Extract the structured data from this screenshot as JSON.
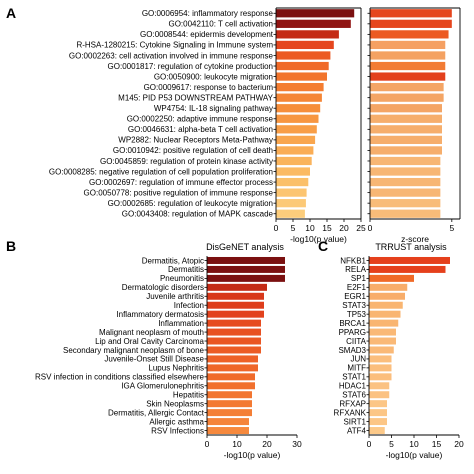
{
  "figure": {
    "background": "#ffffff",
    "axis_color": "#000000"
  },
  "chart_data": [
    {
      "panel": "A",
      "type": "bar",
      "orientation": "horizontal",
      "title": "",
      "xlabel": "-log10(p value)",
      "ylabel": "",
      "xlim": [
        0,
        25
      ],
      "xticks": [
        0,
        5,
        10,
        15,
        20,
        25
      ],
      "categories": [
        "GO:0006954: inflammatory response",
        "GO:0042110: T cell activation",
        "GO:0008544: epidermis development",
        "R-HSA-1280215: Cytokine Signaling in Immune system",
        "GO:0002263: cell activation involved in immune response",
        "GO:0001817: regulation of cytokine production",
        "GO:0050900: leukocyte migration",
        "GO:0009617: response to bacterium",
        "M145: PID P53 DOWNSTREAM PATHWAY",
        "WP4754: IL-18 signaling pathway",
        "GO:0002250: adaptive immune response",
        "GO:0046631: alpha-beta T cell activation",
        "WP2882: Nuclear Receptors Meta-Pathway",
        "GO:0010942: positive regulation of cell death",
        "GO:0045859: regulation of protein kinase activity",
        "GO:0008285: negative regulation of cell population proliferation",
        "GO:0002697: regulation of immune effector process",
        "GO:0050778: positive regulation of immune response",
        "GO:0002685: regulation of leukocyte migration",
        "GO:0043408: regulation of MAPK cascade"
      ],
      "values": [
        23,
        22,
        18.5,
        17,
        16,
        15.5,
        15,
        14,
        13.5,
        13,
        12.5,
        12,
        11.5,
        11,
        10.5,
        10,
        9.5,
        9,
        8.8,
        8.5
      ],
      "colors": [
        "#7b1010",
        "#901412",
        "#c42b16",
        "#e5461e",
        "#ec5a23",
        "#f06a28",
        "#f2742c",
        "#f47d31",
        "#f58636",
        "#f68e3b",
        "#f79641",
        "#f89e47",
        "#f9a64e",
        "#faad55",
        "#fab45c",
        "#fbba63",
        "#fbc06a",
        "#fcc571",
        "#fcc977",
        "#fccd7c"
      ]
    },
    {
      "panel": "A",
      "type": "bar",
      "orientation": "horizontal",
      "title": "",
      "xlabel": "z-score",
      "ylabel": "",
      "xlim": [
        0,
        5.5
      ],
      "xticks": [
        0,
        5
      ],
      "categories": [
        "GO:0006954: inflammatory response",
        "GO:0042110: T cell activation",
        "GO:0008544: epidermis development",
        "R-HSA-1280215: Cytokine Signaling in Immune system",
        "GO:0002263: cell activation involved in immune response",
        "GO:0001817: regulation of cytokine production",
        "GO:0050900: leukocyte migration",
        "GO:0009617: response to bacterium",
        "M145: PID P53 DOWNSTREAM PATHWAY",
        "WP4754: IL-18 signaling pathway",
        "GO:0002250: adaptive immune response",
        "GO:0046631: alpha-beta T cell activation",
        "WP2882: Nuclear Receptors Meta-Pathway",
        "GO:0010942: positive regulation of cell death",
        "GO:0045859: regulation of protein kinase activity",
        "GO:0008285: negative regulation of cell population proliferation",
        "GO:0002697: regulation of immune effector process",
        "GO:0050778: positive regulation of immune response",
        "GO:0002685: regulation of leukocyte migration",
        "GO:0043408: regulation of MAPK cascade"
      ],
      "values": [
        5,
        5,
        4.8,
        4.6,
        4.6,
        4.6,
        4.6,
        4.5,
        4.5,
        4.4,
        4.4,
        4.4,
        4.4,
        4.4,
        4.3,
        4.3,
        4.3,
        4.3,
        4.3,
        4.3
      ],
      "colors": [
        "#e5461e",
        "#e5461e",
        "#ec5a23",
        "#f5a062",
        "#f4a262",
        "#f27c35",
        "#e3401c",
        "#f4a565",
        "#f4a565",
        "#f4a565",
        "#f6ae6c",
        "#f6ae6c",
        "#f6ae6c",
        "#f6ae6c",
        "#f7b674",
        "#f7b674",
        "#f7b674",
        "#f7b674",
        "#f8bc79",
        "#f8bc79"
      ]
    },
    {
      "panel": "B",
      "type": "bar",
      "orientation": "horizontal",
      "title": "DisGeNET analysis",
      "xlabel": "-log10(p value)",
      "ylabel": "",
      "xlim": [
        0,
        30
      ],
      "xticks": [
        0,
        10,
        20,
        30
      ],
      "categories": [
        "Dermatitis, Atopic",
        "Dermatitis",
        "Pneumonitis",
        "Dermatologic disorders",
        "Juvenile arthritis",
        "Infection",
        "Inflammatory dermatosis",
        "Inflammation",
        "Malignant neoplasm of mouth",
        "Lip and Oral Cavity Carcinoma",
        "Secondary malignant neoplasm of bone",
        "Juvenile-Onset Still Disease",
        "Lupus Nephritis",
        "RSV infection in conditions classified elsewhere",
        "IGA Glomerulonephritis",
        "Hepatitis",
        "Skin Neoplasms",
        "Dermatitis, Allergic Contact",
        "Allergic asthma",
        "RSV Infections"
      ],
      "values": [
        26,
        26,
        26,
        20,
        19,
        19,
        19,
        18,
        18,
        18,
        18,
        17,
        17,
        16,
        16,
        15,
        15,
        15,
        14,
        14
      ],
      "colors": [
        "#7b1010",
        "#7b1010",
        "#7b1010",
        "#c42b16",
        "#d8381a",
        "#de3d1b",
        "#e2421d",
        "#e64b1f",
        "#e85122",
        "#ea5623",
        "#ec5c25",
        "#ee6127",
        "#ef6629",
        "#f06b2b",
        "#f1702d",
        "#f27530",
        "#f37a33",
        "#f47f36",
        "#f5843a",
        "#f6893d"
      ]
    },
    {
      "panel": "C",
      "type": "bar",
      "orientation": "horizontal",
      "title": "TRRUST analysis",
      "xlabel": "-log10(p value)",
      "ylabel": "",
      "xlim": [
        0,
        20
      ],
      "xticks": [
        0,
        5,
        10,
        15,
        20
      ],
      "categories": [
        "NFKB1",
        "RELA",
        "SP1",
        "E2F1",
        "EGR1",
        "STAT3",
        "TP53",
        "BRCA1",
        "PPARG",
        "CIITA",
        "SMAD3",
        "JUN",
        "MITF",
        "STAT1",
        "HDAC1",
        "STAT6",
        "RFXAP",
        "RFXANK",
        "SIRT1",
        "ATF4"
      ],
      "values": [
        18,
        17,
        10,
        8.5,
        8,
        7.5,
        7,
        6.5,
        6,
        6,
        5.5,
        5,
        5,
        5,
        4.5,
        4.5,
        4,
        4,
        4,
        3.5
      ],
      "colors": [
        "#e5401c",
        "#e5401c",
        "#f06a28",
        "#f8ad6a",
        "#f8ad6a",
        "#f9b571",
        "#f9b571",
        "#f9b571",
        "#fab977",
        "#fab977",
        "#fab977",
        "#fbbe7d",
        "#fbbe7d",
        "#fbbe7d",
        "#fbc282",
        "#fbc282",
        "#fcc686",
        "#fcc686",
        "#fcc686",
        "#fcc989"
      ]
    }
  ]
}
